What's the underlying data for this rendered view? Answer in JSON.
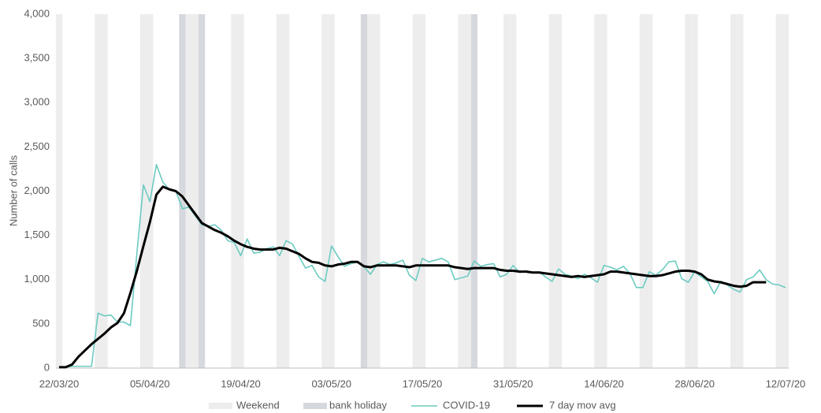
{
  "chart_data": {
    "type": "combo",
    "y_label": "Number of calls",
    "categories": [
      "22/03/20",
      null,
      null,
      null,
      null,
      null,
      null,
      null,
      null,
      null,
      null,
      null,
      null,
      null,
      "05/04/20",
      null,
      null,
      null,
      null,
      null,
      null,
      null,
      null,
      null,
      null,
      null,
      null,
      null,
      "19/04/20",
      null,
      null,
      null,
      null,
      null,
      null,
      null,
      null,
      null,
      null,
      null,
      null,
      null,
      "03/05/20",
      null,
      null,
      null,
      null,
      null,
      null,
      null,
      null,
      null,
      null,
      null,
      null,
      null,
      "17/05/20",
      null,
      null,
      null,
      null,
      null,
      null,
      null,
      null,
      null,
      null,
      null,
      null,
      null,
      "31/05/20",
      null,
      null,
      null,
      null,
      null,
      null,
      null,
      null,
      null,
      null,
      null,
      null,
      null,
      "14/06/20",
      null,
      null,
      null,
      null,
      null,
      null,
      null,
      null,
      null,
      null,
      null,
      null,
      null,
      "28/06/20",
      null,
      null,
      null,
      null,
      null,
      null,
      null,
      null,
      null,
      null,
      null,
      null,
      null,
      "12/07/20"
    ],
    "series": [
      {
        "name": "Weekend",
        "type": "bar",
        "color": "#ededed",
        "values": [
          4000,
          null,
          null,
          null,
          null,
          null,
          4000,
          4000,
          null,
          null,
          null,
          null,
          null,
          4000,
          4000,
          null,
          null,
          null,
          null,
          null,
          4000,
          4000,
          null,
          null,
          null,
          null,
          null,
          4000,
          4000,
          null,
          null,
          null,
          null,
          null,
          4000,
          4000,
          null,
          null,
          null,
          null,
          null,
          4000,
          4000,
          null,
          null,
          null,
          null,
          null,
          4000,
          4000,
          null,
          null,
          null,
          null,
          null,
          4000,
          4000,
          null,
          null,
          null,
          null,
          null,
          4000,
          4000,
          null,
          null,
          null,
          null,
          null,
          4000,
          4000,
          null,
          null,
          null,
          null,
          null,
          4000,
          4000,
          null,
          null,
          null,
          null,
          null,
          4000,
          4000,
          null,
          null,
          null,
          null,
          null,
          4000,
          4000,
          null,
          null,
          null,
          null,
          null,
          4000,
          4000,
          null,
          null,
          null,
          null,
          null,
          4000,
          4000,
          null,
          null,
          null,
          null,
          null,
          4000,
          4000
        ]
      },
      {
        "name": "bank holiday",
        "type": "bar",
        "color": "#d5d8dd",
        "values": [
          null,
          null,
          null,
          null,
          null,
          null,
          null,
          null,
          null,
          null,
          null,
          null,
          null,
          null,
          null,
          null,
          null,
          null,
          null,
          4000,
          null,
          null,
          4000,
          null,
          null,
          null,
          null,
          null,
          null,
          null,
          null,
          null,
          null,
          null,
          null,
          null,
          null,
          null,
          null,
          null,
          null,
          null,
          null,
          null,
          null,
          null,
          null,
          4000,
          null,
          null,
          null,
          null,
          null,
          null,
          null,
          null,
          null,
          null,
          null,
          null,
          null,
          null,
          null,
          null,
          4000,
          null,
          null,
          null,
          null,
          null,
          null,
          null,
          null,
          null,
          null,
          null,
          null,
          null,
          null,
          null,
          null,
          null,
          null,
          null,
          null,
          null,
          null,
          null,
          null,
          null,
          null,
          null,
          null,
          null,
          null,
          null,
          null,
          null,
          null,
          null,
          null,
          null,
          null,
          null,
          null,
          null,
          null,
          null,
          null,
          null,
          null,
          null,
          null
        ]
      },
      {
        "name": "COVID-19",
        "type": "line",
        "color": "#6ccbc1",
        "width": 1.6,
        "values": [
          10,
          10,
          20,
          20,
          20,
          20,
          620,
          590,
          600,
          520,
          520,
          480,
          1300,
          2070,
          1880,
          2300,
          2100,
          2020,
          2000,
          1800,
          1820,
          1720,
          1620,
          1600,
          1620,
          1560,
          1440,
          1420,
          1270,
          1460,
          1300,
          1310,
          1350,
          1370,
          1270,
          1440,
          1400,
          1260,
          1130,
          1160,
          1030,
          980,
          1380,
          1260,
          1150,
          1180,
          1200,
          1150,
          1060,
          1170,
          1200,
          1170,
          1190,
          1220,
          1050,
          990,
          1240,
          1200,
          1220,
          1240,
          1200,
          1000,
          1020,
          1040,
          1210,
          1150,
          1170,
          1180,
          1030,
          1060,
          1160,
          1080,
          1100,
          1080,
          1090,
          1030,
          980,
          1120,
          1060,
          1040,
          1010,
          1060,
          1020,
          970,
          1160,
          1140,
          1110,
          1150,
          1070,
          910,
          910,
          1090,
          1050,
          1110,
          1200,
          1210,
          1010,
          970,
          1090,
          1030,
          980,
          840,
          980,
          940,
          890,
          860,
          1000,
          1030,
          1110,
          1000,
          950,
          940,
          910
        ]
      },
      {
        "name": "7 day mov avg",
        "type": "line",
        "color": "#000000",
        "width": 3,
        "values": [
          10,
          10,
          40,
          130,
          200,
          270,
          330,
          390,
          460,
          510,
          620,
          850,
          1100,
          1380,
          1650,
          1960,
          2050,
          2020,
          2000,
          1940,
          1840,
          1740,
          1640,
          1600,
          1560,
          1530,
          1490,
          1440,
          1400,
          1370,
          1350,
          1340,
          1340,
          1340,
          1360,
          1350,
          1320,
          1290,
          1240,
          1200,
          1190,
          1160,
          1150,
          1170,
          1180,
          1200,
          1200,
          1150,
          1140,
          1160,
          1160,
          1160,
          1160,
          1150,
          1140,
          1160,
          1160,
          1160,
          1160,
          1160,
          1160,
          1140,
          1130,
          1120,
          1130,
          1130,
          1130,
          1130,
          1110,
          1100,
          1100,
          1090,
          1090,
          1080,
          1080,
          1070,
          1060,
          1050,
          1040,
          1030,
          1040,
          1030,
          1040,
          1050,
          1060,
          1090,
          1090,
          1080,
          1070,
          1060,
          1050,
          1040,
          1040,
          1050,
          1070,
          1090,
          1100,
          1100,
          1090,
          1060,
          1000,
          980,
          970,
          950,
          930,
          920,
          930,
          970,
          970,
          970,
          null,
          null,
          null
        ]
      }
    ],
    "ylim": [
      0,
      4000
    ],
    "yticks": [
      0,
      500,
      {
        "value": 1000,
        "label": "1,000"
      },
      {
        "value": 1500,
        "label": "1,500"
      },
      {
        "value": 2000,
        "label": "2,000"
      },
      {
        "value": 2500,
        "label": "2,500"
      },
      {
        "value": 3000,
        "label": "3,000"
      },
      {
        "value": 3500,
        "label": "3,500"
      },
      {
        "value": 4000,
        "label": "4,000"
      }
    ],
    "grid": false,
    "legend": "bottom"
  }
}
